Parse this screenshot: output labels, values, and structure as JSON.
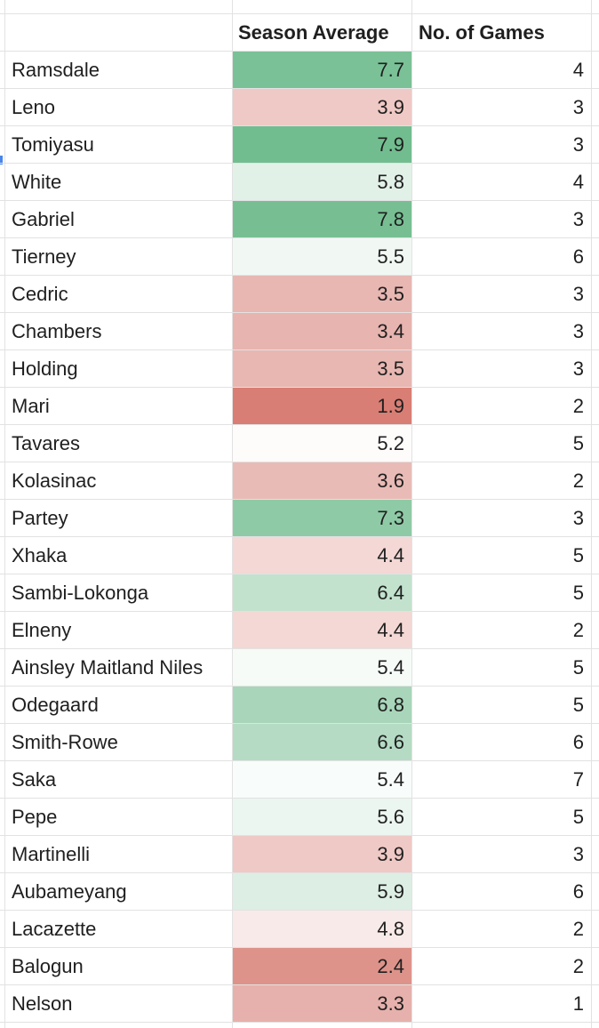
{
  "columns": {
    "name": "",
    "season_average": "Season Average",
    "games": "No. of Games"
  },
  "rows": [
    {
      "name": "Ramsdale",
      "avg": "7.7",
      "games": "4",
      "color": "#7bc197"
    },
    {
      "name": "Leno",
      "avg": "3.9",
      "games": "3",
      "color": "#efc9c5"
    },
    {
      "name": "Tomiyasu",
      "avg": "7.9",
      "games": "3",
      "color": "#72bd8f"
    },
    {
      "name": "White",
      "avg": "5.8",
      "games": "4",
      "color": "#e2f1e8"
    },
    {
      "name": "Gabriel",
      "avg": "7.8",
      "games": "3",
      "color": "#77bf93"
    },
    {
      "name": "Tierney",
      "avg": "5.5",
      "games": "6",
      "color": "#f1f8f4"
    },
    {
      "name": "Cedric",
      "avg": "3.5",
      "games": "3",
      "color": "#e8b7b2"
    },
    {
      "name": "Chambers",
      "avg": "3.4",
      "games": "3",
      "color": "#e7b4af"
    },
    {
      "name": "Holding",
      "avg": "3.5",
      "games": "3",
      "color": "#e8b7b2"
    },
    {
      "name": "Mari",
      "avg": "1.9",
      "games": "2",
      "color": "#d97e74"
    },
    {
      "name": "Tavares",
      "avg": "5.2",
      "games": "5",
      "color": "#fefbfb"
    },
    {
      "name": "Kolasinac",
      "avg": "3.6",
      "games": "2",
      "color": "#e9bbb6"
    },
    {
      "name": "Partey",
      "avg": "7.3",
      "games": "3",
      "color": "#8fcaa6"
    },
    {
      "name": "Xhaka",
      "avg": "4.4",
      "games": "5",
      "color": "#f3d8d5"
    },
    {
      "name": "Sambi-Lokonga",
      "avg": "6.4",
      "games": "5",
      "color": "#c2e2ce"
    },
    {
      "name": "Elneny",
      "avg": "4.4",
      "games": "2",
      "color": "#f3d8d5"
    },
    {
      "name": "Ainsley Maitland Niles",
      "avg": "5.4",
      "games": "5",
      "color": "#f6fbf8"
    },
    {
      "name": "Odegaard",
      "avg": "6.8",
      "games": "5",
      "color": "#a9d6ba"
    },
    {
      "name": "Smith-Rowe",
      "avg": "6.6",
      "games": "6",
      "color": "#b5dbc4"
    },
    {
      "name": "Saka",
      "avg": "5.4",
      "games": "7",
      "color": "#f8fcfa"
    },
    {
      "name": "Pepe",
      "avg": "5.6",
      "games": "5",
      "color": "#ecf6f0"
    },
    {
      "name": "Martinelli",
      "avg": "3.9",
      "games": "3",
      "color": "#efc9c5"
    },
    {
      "name": "Aubameyang",
      "avg": "5.9",
      "games": "6",
      "color": "#ddeee4"
    },
    {
      "name": "Lacazette",
      "avg": "4.8",
      "games": "2",
      "color": "#f8eae8"
    },
    {
      "name": "Balogun",
      "avg": "2.4",
      "games": "2",
      "color": "#de938a"
    },
    {
      "name": "Nelson",
      "avg": "3.3",
      "games": "1",
      "color": "#e6b1ac"
    }
  ]
}
